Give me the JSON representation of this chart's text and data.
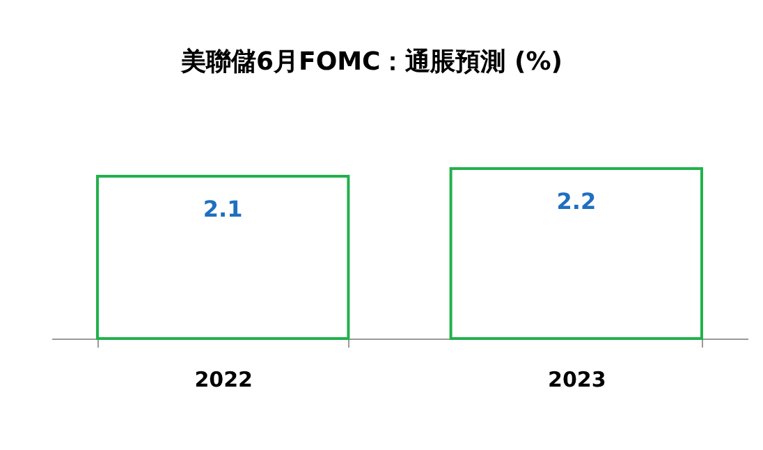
{
  "chart_data": {
    "type": "bar",
    "title": "美聯儲6月FOMC：通脹預測 (%)",
    "categories": [
      "2022",
      "2023"
    ],
    "values": [
      2.1,
      2.2
    ],
    "color": "#22b14c",
    "data_labels": true,
    "grid": false
  }
}
